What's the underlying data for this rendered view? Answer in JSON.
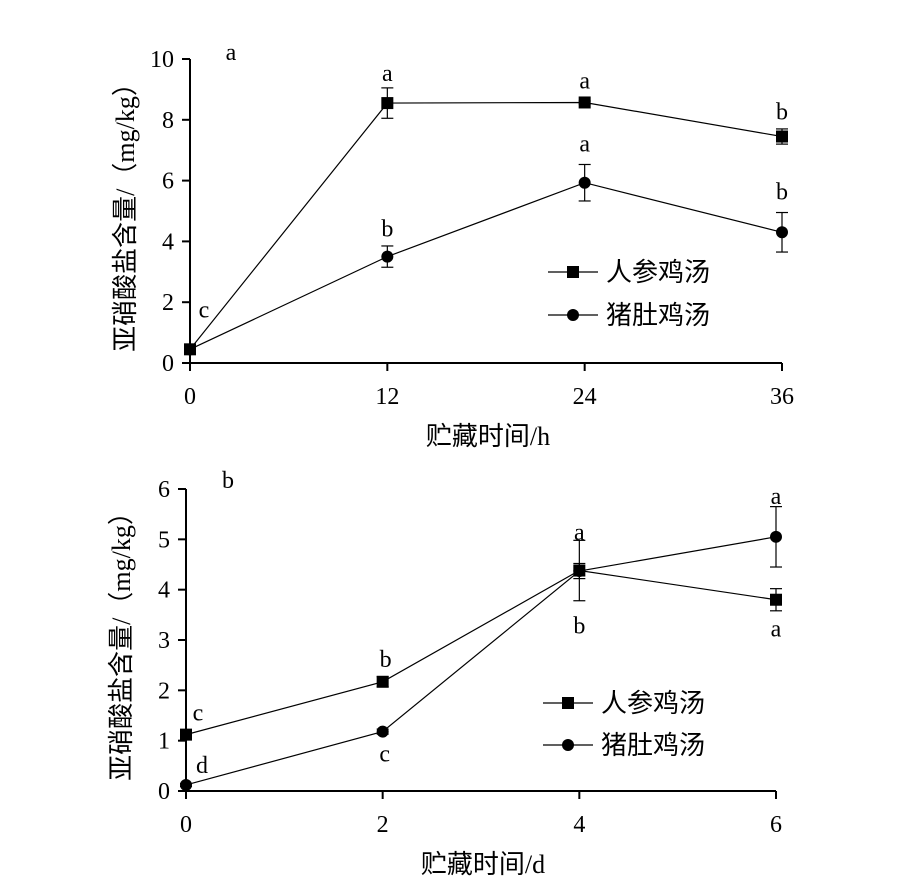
{
  "chart_data": [
    {
      "type": "line",
      "panel_label": "a",
      "xlabel": "贮藏时间/h",
      "ylabel": "亚硝酸盐含量/（mg/kg）",
      "x": [
        0,
        12,
        24,
        36
      ],
      "xticks": [
        "0",
        "12",
        "24",
        "36"
      ],
      "yticks": [
        "0",
        "2",
        "4",
        "6",
        "8",
        "10"
      ],
      "xlim": [
        0,
        36
      ],
      "ylim": [
        0,
        10
      ],
      "grid": false,
      "legend_position": "lower-right",
      "series": [
        {
          "name": "人参鸡汤",
          "marker": "square",
          "values": [
            0.45,
            8.55,
            8.57,
            7.45
          ],
          "errors": [
            0.1,
            0.5,
            0.05,
            0.25
          ],
          "labels": [
            "",
            "a",
            "a",
            "b"
          ]
        },
        {
          "name": "猪肚鸡汤",
          "marker": "circle",
          "values": [
            0.45,
            3.5,
            5.93,
            4.3
          ],
          "errors": [
            0.1,
            0.35,
            0.6,
            0.65
          ],
          "labels": [
            "c",
            "b",
            "a",
            "b"
          ]
        }
      ]
    },
    {
      "type": "line",
      "panel_label": "b",
      "xlabel": "贮藏时间/d",
      "ylabel": "亚硝酸盐含量/（mg/kg）",
      "x": [
        0,
        2,
        4,
        6
      ],
      "xticks": [
        "0",
        "2",
        "4",
        "6"
      ],
      "yticks": [
        "0",
        "1",
        "2",
        "3",
        "4",
        "5",
        "6"
      ],
      "xlim": [
        0,
        6
      ],
      "ylim": [
        0,
        6
      ],
      "grid": false,
      "legend_position": "lower-right",
      "series": [
        {
          "name": "人参鸡汤",
          "marker": "square",
          "values": [
            1.12,
            2.17,
            4.38,
            3.8
          ],
          "errors": [
            0.05,
            0.1,
            0.6,
            0.22
          ],
          "labels": [
            "c",
            "b",
            "b",
            "a"
          ]
        },
        {
          "name": "猪肚鸡汤",
          "marker": "circle",
          "values": [
            0.12,
            1.18,
            4.37,
            5.05
          ],
          "errors": [
            0.03,
            0.05,
            0.15,
            0.6
          ],
          "labels": [
            "d",
            "c",
            "a",
            "a"
          ]
        }
      ]
    }
  ]
}
